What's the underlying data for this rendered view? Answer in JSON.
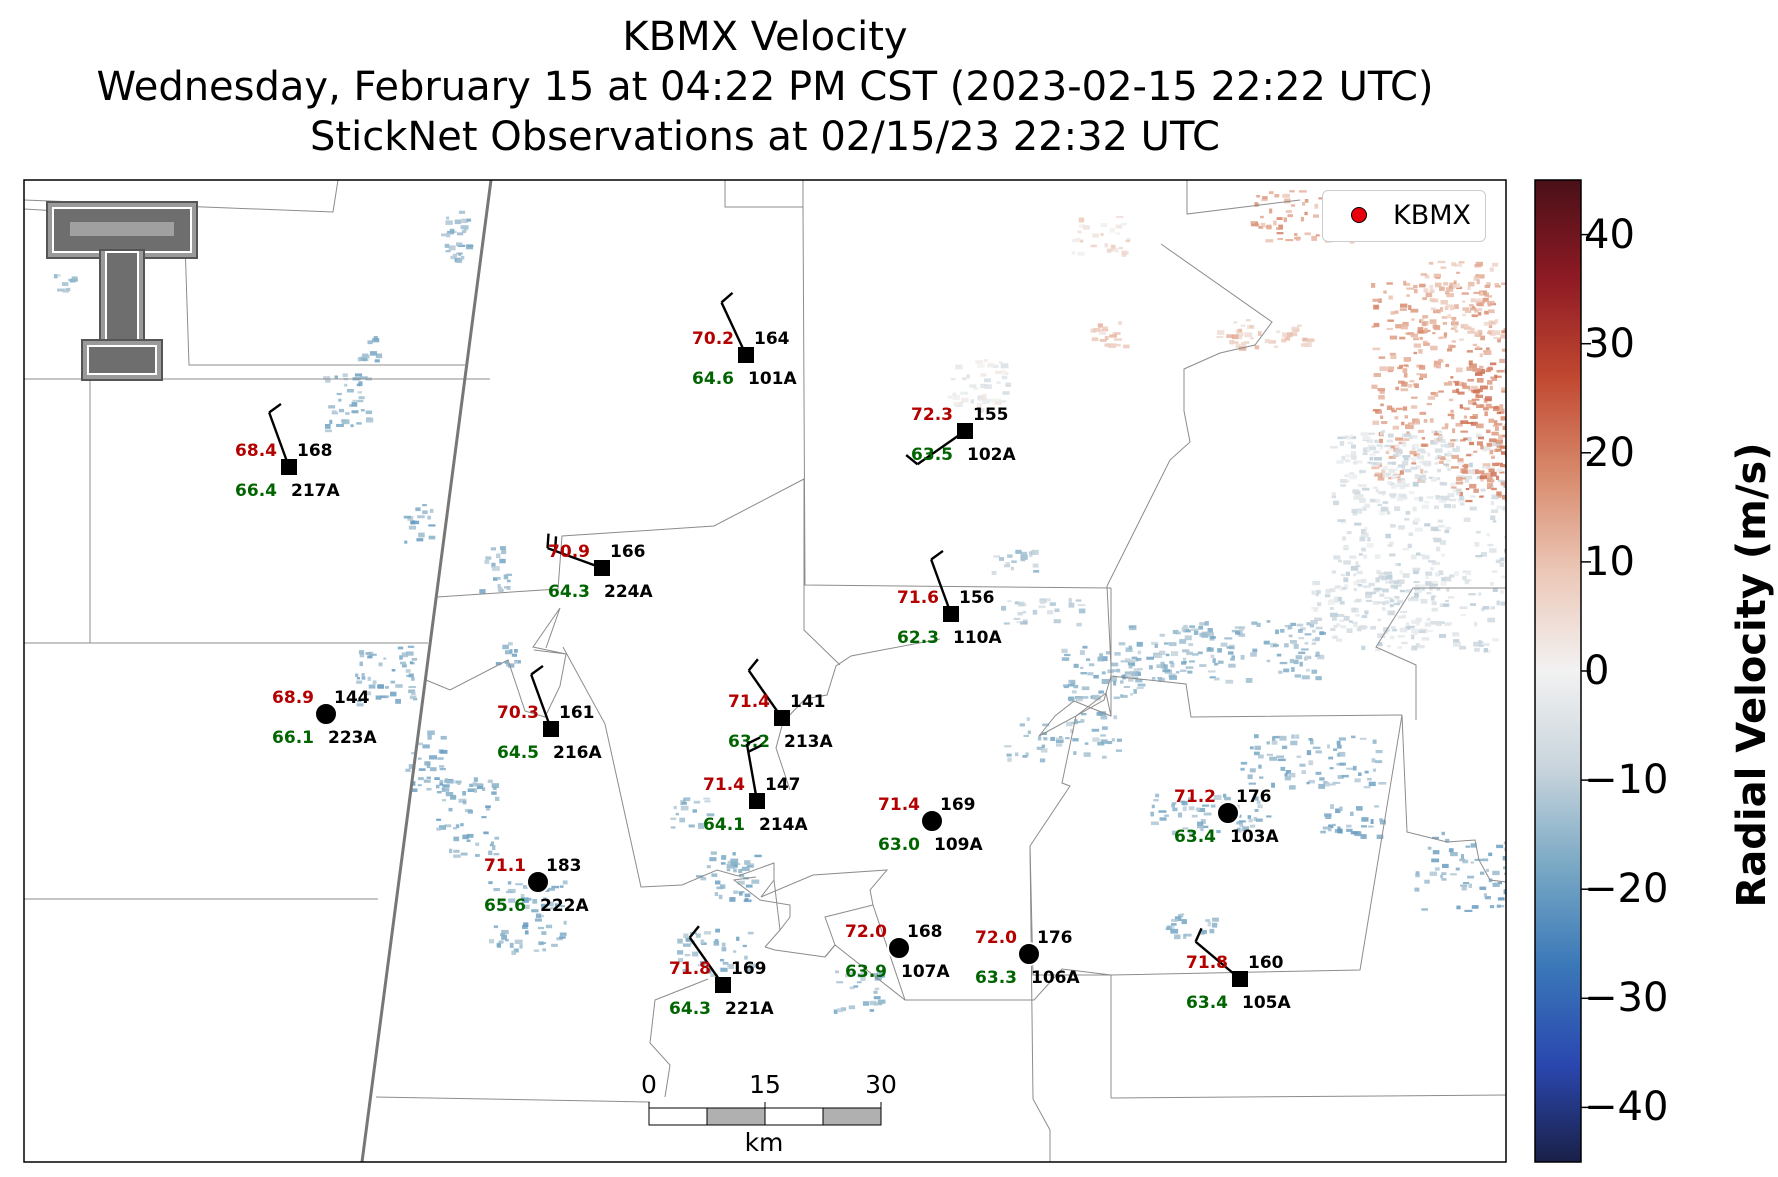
{
  "title_lines": [
    "KBMX Velocity",
    "Wednesday, February 15 at 04:22 PM CST (2023-02-15 22:22 UTC)",
    "StickNet Observations at 02/15/23 22:32 UTC"
  ],
  "colorbar": {
    "label": "Radial Velocity (m/s)",
    "range": [
      -45,
      45
    ],
    "tick_labels": [
      "40",
      "30",
      "20",
      "10",
      "0",
      "−10",
      "−20",
      "−30",
      "−40"
    ],
    "colormap_stops": [
      "#1a2048",
      "#2a48b0",
      "#3a78b8",
      "#78a8c4",
      "#c8d4dc",
      "#f2f2f2",
      "#ecc8b8",
      "#d88a6c",
      "#c04830",
      "#8e1a24",
      "#4a1018"
    ]
  },
  "legend": {
    "label": "KBMX",
    "marker_color": "#e8000b"
  },
  "scale_bar": {
    "tick_labels": [
      "0",
      "15",
      "30"
    ],
    "unit": "km"
  },
  "logo": {
    "letters": "TT",
    "name": "texas-tech-double-t-logo"
  },
  "colors": {
    "temperature": "#b30000",
    "dewpoint": "#006400",
    "station": "#000000"
  },
  "stations": [
    {
      "id": "101A",
      "temp": "70.2",
      "dew": "64.6",
      "dir": "164",
      "marker": "square",
      "wind_from_deg": 335,
      "barbs": 1
    },
    {
      "id": "102A",
      "temp": "72.3",
      "dew": "63.5",
      "dir": "155",
      "marker": "square",
      "wind_from_deg": 235,
      "barbs": 1
    },
    {
      "id": "217A",
      "temp": "68.4",
      "dew": "66.4",
      "dir": "168",
      "marker": "square",
      "wind_from_deg": 340,
      "barbs": 1
    },
    {
      "id": "224A",
      "temp": "70.9",
      "dew": "64.3",
      "dir": "166",
      "marker": "square",
      "wind_from_deg": 290,
      "barbs": 2
    },
    {
      "id": "110A",
      "temp": "71.6",
      "dew": "62.3",
      "dir": "156",
      "marker": "square",
      "wind_from_deg": 340,
      "barbs": 1
    },
    {
      "id": "223A",
      "temp": "68.9",
      "dew": "66.1",
      "dir": "144",
      "marker": "circle"
    },
    {
      "id": "216A",
      "temp": "70.3",
      "dew": "64.5",
      "dir": "161",
      "marker": "square",
      "wind_from_deg": 340,
      "barbs": 1
    },
    {
      "id": "213A",
      "temp": "71.4",
      "dew": "63.2",
      "dir": "141",
      "marker": "square",
      "wind_from_deg": 325,
      "barbs": 1
    },
    {
      "id": "214A",
      "temp": "71.4",
      "dew": "64.1",
      "dir": "147",
      "marker": "square",
      "wind_from_deg": 350,
      "barbs": 2
    },
    {
      "id": "109A",
      "temp": "71.4",
      "dew": "63.0",
      "dir": "169",
      "marker": "circle"
    },
    {
      "id": "103A",
      "temp": "71.2",
      "dew": "63.4",
      "dir": "176",
      "marker": "circle"
    },
    {
      "id": "222A",
      "temp": "71.1",
      "dew": "65.6",
      "dir": "183",
      "marker": "circle"
    },
    {
      "id": "107A",
      "temp": "72.0",
      "dew": "63.9",
      "dir": "168",
      "marker": "circle"
    },
    {
      "id": "106A",
      "temp": "72.0",
      "dew": "63.3",
      "dir": "176",
      "marker": "circle"
    },
    {
      "id": "221A",
      "temp": "71.8",
      "dew": "64.3",
      "dir": "169",
      "marker": "square",
      "wind_from_deg": 325,
      "barbs": 1
    },
    {
      "id": "105A",
      "temp": "71.8",
      "dew": "63.4",
      "dir": "160",
      "marker": "square",
      "wind_from_deg": 310,
      "barbs": 1
    }
  ]
}
